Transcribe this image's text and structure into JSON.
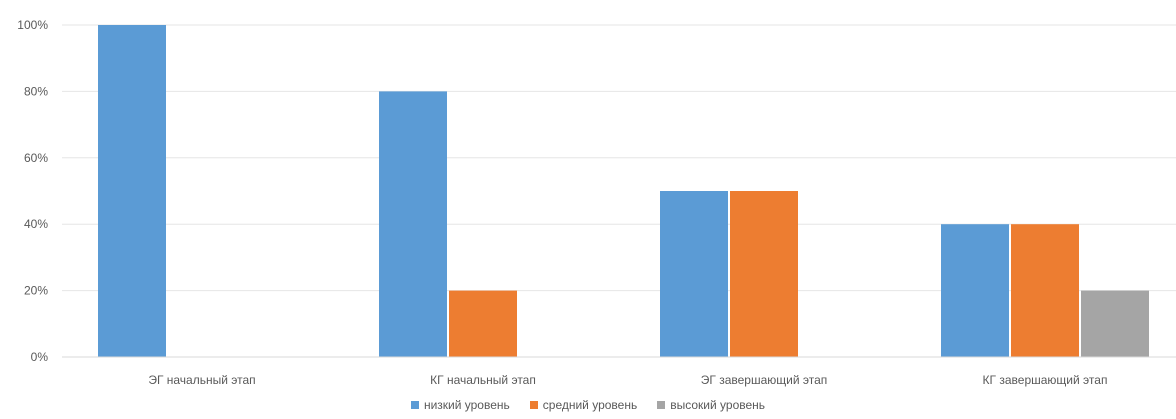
{
  "chart_data": {
    "type": "bar",
    "categories": [
      "ЭГ начальный этап",
      "КГ начальный этап",
      "ЭГ завершающий этап",
      "КГ завершающий этап"
    ],
    "series": [
      {
        "name": "низкий уровень",
        "values": [
          100,
          80,
          50,
          40
        ],
        "color": "#5b9bd5"
      },
      {
        "name": "средний уровень",
        "values": [
          0,
          20,
          50,
          40
        ],
        "color": "#ed7d31"
      },
      {
        "name": "высокий уровень",
        "values": [
          0,
          0,
          0,
          20
        ],
        "color": "#a5a5a5"
      }
    ],
    "ylim": [
      0,
      100
    ],
    "yticks": [
      "0%",
      "20%",
      "40%",
      "60%",
      "80%",
      "100%"
    ],
    "grid": true,
    "legend_position": "bottom"
  }
}
